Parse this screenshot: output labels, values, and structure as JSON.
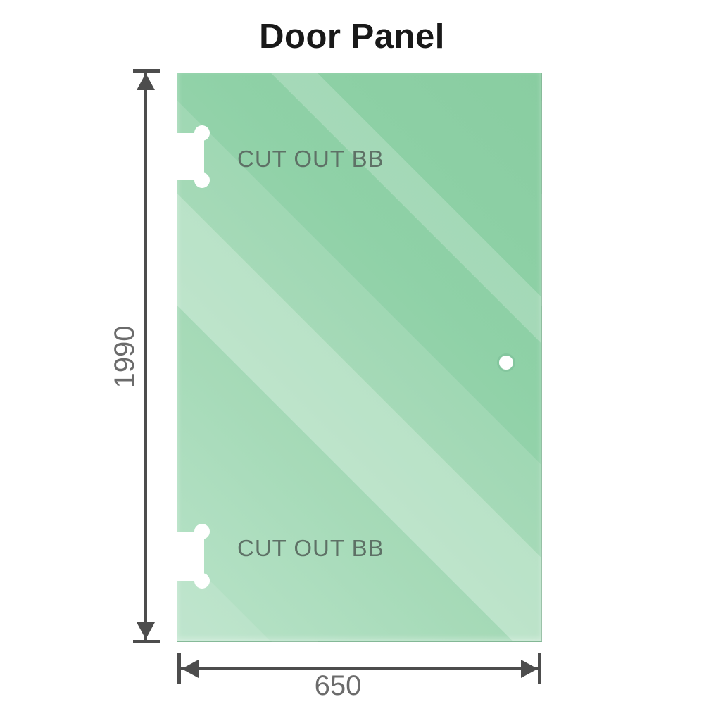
{
  "title": "Door Panel",
  "panel": {
    "cutout_top_label": "CUT OUT BB",
    "cutout_bottom_label": "CUT OUT BB",
    "features": {
      "hinge_cutouts": 2,
      "handle_hole": 1
    }
  },
  "dimensions": {
    "height_value": "1990",
    "width_value": "650"
  },
  "colors": {
    "glass_base": "#8bcfa3",
    "glass_light_band": "#bfe4cc",
    "glass_bottom_light": "#b3e0c4",
    "panel_edge": "#8fb39d",
    "dimension_line": "#4d4d4d",
    "dimension_label_text": "#6b6b6b",
    "cutout_label_text": "#5e7166",
    "title_text": "#191919",
    "hole_ring": "#84c69e",
    "background": "#ffffff"
  }
}
